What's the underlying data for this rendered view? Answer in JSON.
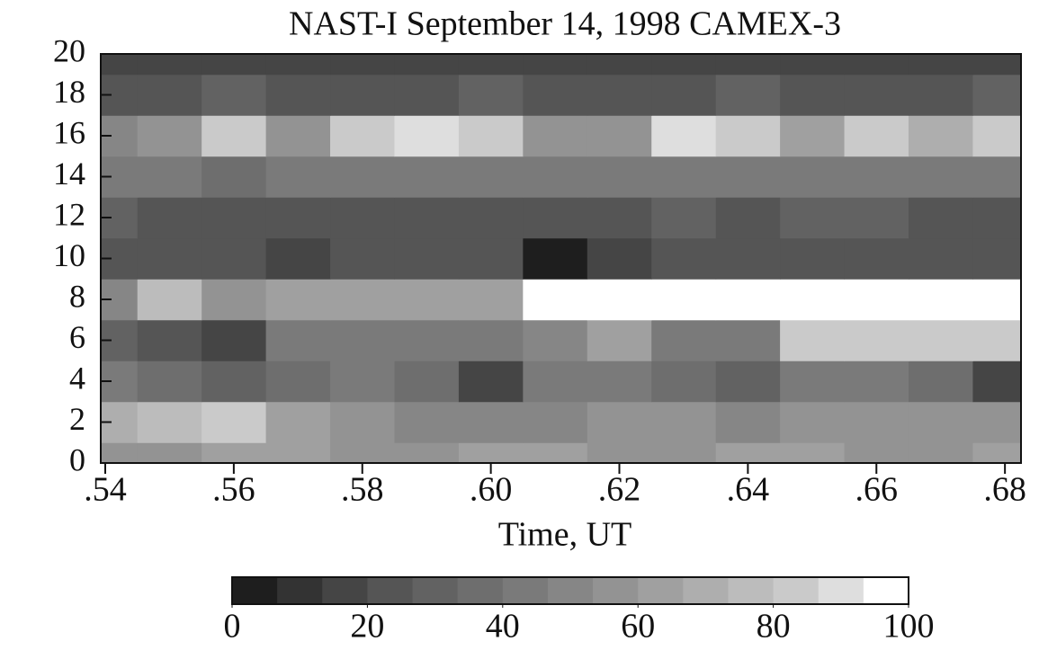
{
  "chart_data": {
    "type": "contour",
    "title": "NAST-I September 14, 1998 CAMEX-3",
    "xlabel": "Time, UT",
    "x": [
      0.54,
      0.55,
      0.56,
      0.57,
      0.58,
      0.59,
      0.6,
      0.61,
      0.62,
      0.63,
      0.64,
      0.65,
      0.66,
      0.67,
      0.68
    ],
    "y": [
      0,
      2,
      4,
      6,
      8,
      10,
      12,
      14,
      16,
      18,
      20
    ],
    "z": [
      [
        55,
        55,
        60,
        60,
        55,
        55,
        60,
        60,
        55,
        55,
        60,
        60,
        55,
        55,
        60
      ],
      [
        70,
        75,
        80,
        60,
        55,
        50,
        50,
        50,
        55,
        55,
        50,
        55,
        55,
        55,
        55
      ],
      [
        40,
        35,
        30,
        35,
        40,
        35,
        15,
        40,
        40,
        35,
        30,
        40,
        40,
        35,
        15
      ],
      [
        30,
        25,
        15,
        40,
        45,
        45,
        40,
        50,
        60,
        45,
        40,
        80,
        85,
        85,
        85
      ],
      [
        50,
        75,
        55,
        60,
        65,
        65,
        60,
        95,
        95,
        95,
        95,
        95,
        95,
        95,
        95
      ],
      [
        20,
        20,
        20,
        15,
        20,
        20,
        20,
        5,
        15,
        20,
        20,
        20,
        20,
        20,
        20
      ],
      [
        30,
        25,
        25,
        25,
        25,
        25,
        25,
        25,
        25,
        30,
        25,
        30,
        30,
        25,
        25
      ],
      [
        45,
        45,
        35,
        40,
        45,
        40,
        40,
        45,
        40,
        45,
        45,
        40,
        40,
        40,
        40
      ],
      [
        50,
        55,
        85,
        55,
        80,
        90,
        80,
        55,
        55,
        90,
        85,
        60,
        85,
        70,
        80
      ],
      [
        25,
        25,
        30,
        25,
        25,
        25,
        30,
        25,
        25,
        25,
        30,
        25,
        25,
        25,
        30
      ],
      [
        15,
        15,
        15,
        15,
        15,
        15,
        15,
        15,
        15,
        15,
        15,
        15,
        15,
        15,
        15
      ]
    ],
    "xlim": [
      0.5393,
      0.6825
    ],
    "ylim": [
      0,
      20
    ],
    "xticks": [
      {
        "value": 0.54,
        "label": ".54"
      },
      {
        "value": 0.56,
        "label": ".56"
      },
      {
        "value": 0.58,
        "label": ".58"
      },
      {
        "value": 0.6,
        "label": ".60"
      },
      {
        "value": 0.62,
        "label": ".62"
      },
      {
        "value": 0.64,
        "label": ".64"
      },
      {
        "value": 0.66,
        "label": ".66"
      },
      {
        "value": 0.68,
        "label": ".68"
      }
    ],
    "yticks": [
      0,
      2,
      4,
      6,
      8,
      10,
      12,
      14,
      16,
      18,
      20
    ],
    "colorbar": {
      "lim": [
        0,
        100
      ],
      "ticks": [
        0,
        20,
        40,
        60,
        80,
        100
      ],
      "colors": [
        "#1e1e1e",
        "#333333",
        "#454545",
        "#555555",
        "#626262",
        "#6e6e6e",
        "#7a7a7a",
        "#868686",
        "#939393",
        "#a0a0a0",
        "#aeaeae",
        "#bcbcbc",
        "#cacaca",
        "#dedede",
        "#ffffff"
      ]
    }
  }
}
